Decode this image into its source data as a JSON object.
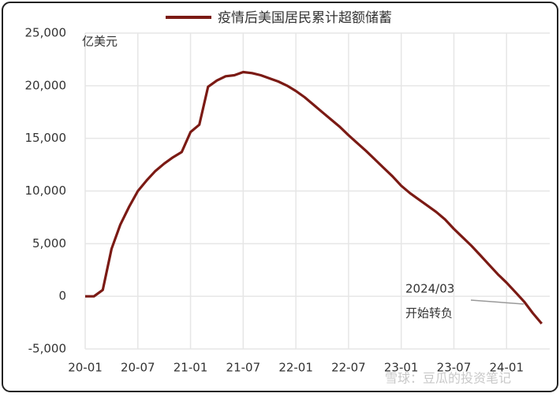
{
  "chart_data": {
    "type": "line",
    "title": "疫情后美国居民累计超额储蓄",
    "y_unit": "亿美元",
    "categories": [
      "20-01",
      null,
      null,
      null,
      null,
      null,
      "20-07",
      null,
      null,
      null,
      null,
      null,
      "21-01",
      null,
      null,
      null,
      null,
      null,
      "21-07",
      null,
      null,
      null,
      null,
      null,
      "22-01",
      null,
      null,
      null,
      null,
      null,
      "22-07",
      null,
      null,
      null,
      null,
      null,
      "23-01",
      null,
      null,
      null,
      null,
      null,
      "23-07",
      null,
      null,
      null,
      null,
      null,
      "24-01",
      null,
      null,
      null,
      null
    ],
    "series": [
      {
        "name": "疫情后美国居民累计超额储蓄",
        "color": "#7b1a14",
        "values": [
          0,
          0,
          600,
          4500,
          6800,
          8500,
          10000,
          11000,
          11900,
          12600,
          13200,
          13700,
          15600,
          16300,
          19900,
          20500,
          20900,
          21000,
          21300,
          21200,
          21000,
          20700,
          20400,
          20000,
          19500,
          18900,
          18200,
          17500,
          16800,
          16100,
          15300,
          14550,
          13800,
          13000,
          12200,
          11400,
          10500,
          9800,
          9200,
          8600,
          8000,
          7300,
          6400,
          5600,
          4800,
          3900,
          3000,
          2100,
          1300,
          400,
          -500,
          -1600,
          -2600
        ]
      }
    ],
    "ylim": [
      -5000,
      25000
    ],
    "yticks": [
      {
        "value": -5000,
        "label": "-5,000"
      },
      0,
      {
        "value": 5000,
        "label": "5,000"
      },
      {
        "value": 10000,
        "label": "10,000"
      },
      {
        "value": 15000,
        "label": "15,000"
      },
      {
        "value": 20000,
        "label": "20,000"
      },
      {
        "value": 25000,
        "label": "25,000"
      }
    ],
    "grid": true,
    "annotation": [
      "2024/03",
      "开始转负"
    ],
    "watermark": "雪球：豆瓜的投资笔记"
  }
}
